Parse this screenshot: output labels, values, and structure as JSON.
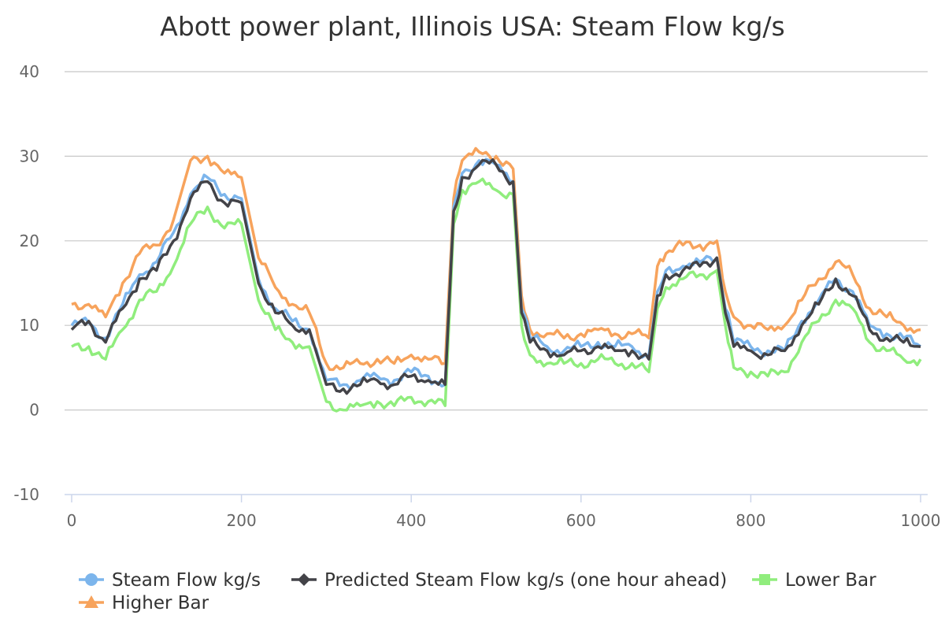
{
  "chart_data": {
    "type": "line",
    "title": "Abott power plant, Illinois USA: Steam Flow kg/s",
    "xlabel": "",
    "ylabel": "",
    "xlim": [
      0,
      1000
    ],
    "ylim": [
      -10,
      40
    ],
    "x_ticks": [
      "0",
      "200",
      "400",
      "600",
      "800",
      "1000"
    ],
    "y_ticks": [
      "-10",
      "0",
      "10",
      "20",
      "30",
      "40"
    ],
    "grid": "horizontal",
    "legend_position": "bottom",
    "x": [
      0,
      20,
      40,
      60,
      80,
      100,
      120,
      140,
      160,
      180,
      200,
      220,
      240,
      260,
      280,
      300,
      320,
      340,
      360,
      380,
      400,
      420,
      440,
      450,
      460,
      480,
      500,
      520,
      530,
      540,
      560,
      580,
      600,
      620,
      640,
      660,
      680,
      690,
      700,
      720,
      740,
      760,
      770,
      780,
      800,
      820,
      840,
      860,
      880,
      900,
      920,
      940,
      960,
      980,
      1000
    ],
    "series": [
      {
        "name": "Steam Flow kg/s",
        "color": "#7cb5ec",
        "marker": "circle",
        "values": [
          10,
          10.3,
          8.5,
          12.5,
          16,
          17.5,
          21,
          25.5,
          27.5,
          25.5,
          25,
          15.5,
          12,
          10.5,
          9.5,
          3.5,
          3,
          3.5,
          4,
          3.5,
          4.5,
          4,
          3,
          24,
          28,
          29.5,
          29,
          27,
          12,
          8.5,
          7.5,
          7,
          7.5,
          8,
          7.5,
          7.5,
          6.5,
          14,
          16.5,
          17,
          17.5,
          18,
          12,
          8,
          7.5,
          7,
          7,
          10.5,
          13,
          15.5,
          14,
          10,
          9,
          8.5,
          7.5
        ]
      },
      {
        "name": "Predicted Steam Flow kg/s (one hour ahead)",
        "color": "#434348",
        "marker": "diamond",
        "values": [
          9.5,
          10.5,
          8,
          12,
          15.5,
          16.5,
          20,
          25,
          27,
          24.5,
          24.5,
          15,
          11.5,
          10,
          9.5,
          3,
          2.5,
          3,
          3.5,
          3,
          4,
          3.5,
          3,
          23.5,
          27.5,
          29,
          29,
          27,
          11.5,
          8,
          7,
          6.5,
          7,
          7.5,
          7,
          7,
          6,
          13.5,
          16,
          16.5,
          17,
          18,
          11.5,
          7.5,
          7,
          6.5,
          7,
          10,
          12.5,
          15.5,
          13.5,
          9.5,
          8.5,
          8,
          7.5
        ]
      },
      {
        "name": "Lower Bar",
        "color": "#90ed7d",
        "marker": "square",
        "values": [
          7.5,
          7.5,
          6,
          9.5,
          13,
          14,
          17,
          22,
          24,
          21.5,
          22,
          13,
          9.5,
          8,
          7.5,
          1,
          0,
          0.5,
          1,
          0.5,
          1.5,
          1,
          0.5,
          22,
          26,
          27,
          26,
          25.5,
          10,
          6.5,
          5.5,
          5.5,
          5.5,
          6,
          5.5,
          5.5,
          4.5,
          12,
          14.5,
          15.5,
          16,
          16.5,
          10,
          5,
          4.5,
          4,
          4.5,
          8,
          10.5,
          13,
          12,
          8,
          7,
          6,
          6
        ]
      },
      {
        "name": "Higher Bar",
        "color": "#f7a35c",
        "marker": "triangle",
        "values": [
          12.5,
          12.5,
          11,
          15,
          18.5,
          19.5,
          22.5,
          29.5,
          30,
          28,
          27.5,
          18,
          14.5,
          12.5,
          11.5,
          5.5,
          5,
          5.5,
          6,
          5.5,
          6.5,
          6,
          5.5,
          25,
          29.5,
          30.5,
          30,
          28.5,
          13.5,
          9.5,
          9,
          8.5,
          9,
          9.5,
          9,
          9,
          8.5,
          17,
          18.5,
          19.5,
          19.5,
          20,
          14,
          11,
          10,
          9.5,
          10,
          13,
          15.5,
          17.5,
          16,
          12,
          11,
          10,
          9.5
        ]
      }
    ]
  }
}
